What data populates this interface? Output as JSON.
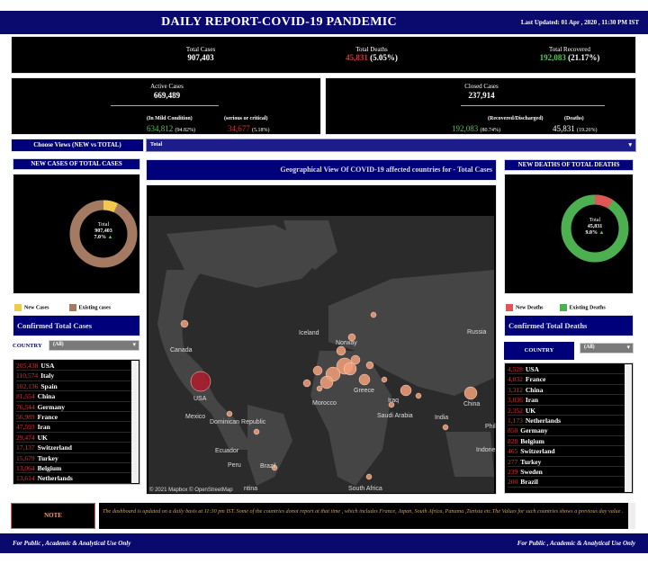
{
  "header": {
    "title": "DAILY REPORT-COVID-19 PANDEMIC",
    "last_updated": "Last Updated: 01 Apr , 2020 , 11:30 PM IST"
  },
  "totals": {
    "total_cases_label": "Total Cases",
    "total_cases": "907,403",
    "total_deaths_label": "Total Deaths",
    "total_deaths": "45,831",
    "total_deaths_pct": "(5.05%)",
    "total_recovered_label": "Total Recovered",
    "total_recovered": "192,083",
    "total_recovered_pct": "(21.17%)"
  },
  "active": {
    "label": "Active Cases",
    "value": "669,489",
    "mild_label": "(In Mild Condition)",
    "mild_value": "634,812",
    "mild_pct": "(94.82%)",
    "serious_label": "(serious or critical)",
    "serious_value": "34,677",
    "serious_pct": "(5.18%)"
  },
  "closed": {
    "label": "Closed Cases",
    "value": "237,914",
    "recovered_label": "(Recovered/Discharged)",
    "recovered_value": "192,083",
    "recovered_pct": "(80.74%)",
    "deaths_label": "(Deaths)",
    "deaths_value": "45,831",
    "deaths_pct": "(19.26%)"
  },
  "views": {
    "label": "Choose Views (NEW vs TOTAL)",
    "selected": "Total"
  },
  "left_panel": {
    "head": "NEW CASES OF TOTAL CASES",
    "donut_total_label": "Total",
    "donut_total_value": "907,403",
    "donut_pct": "7.0%",
    "donut_fraction": 0.07,
    "legend_new": "New Cases",
    "legend_existing": "Existing cases",
    "confirmed_head": "Confirmed Total Cases",
    "country_label": "COUNTRY",
    "country_filter": "(All)",
    "rows": [
      {
        "num": "205,438",
        "name": "USA"
      },
      {
        "num": "110,574",
        "name": "Italy"
      },
      {
        "num": "102,136",
        "name": "Spain"
      },
      {
        "num": "81,554",
        "name": "China"
      },
      {
        "num": "76,544",
        "name": "Germany"
      },
      {
        "num": "56,989",
        "name": "France"
      },
      {
        "num": "47,593",
        "name": "Iran"
      },
      {
        "num": "29,474",
        "name": "UK"
      },
      {
        "num": "17,137",
        "name": "Switzerland"
      },
      {
        "num": "15,679",
        "name": "Turkey"
      },
      {
        "num": "13,064",
        "name": "Belgium"
      },
      {
        "num": "13,614",
        "name": "Netherlands"
      }
    ]
  },
  "right_panel": {
    "head": "NEW DEATHS OF TOTAL DEATHS",
    "donut_total_label": "Total",
    "donut_total_value": "45,831",
    "donut_pct": "9.0%",
    "donut_fraction": 0.09,
    "legend_new": "New Deaths",
    "legend_existing": "Existing Deaths",
    "confirmed_head": "Confirmed Total Deaths",
    "country_label": "COUNTRY",
    "country_filter": "(All)",
    "rows": [
      {
        "num": "4,528",
        "name": "USA"
      },
      {
        "num": "4,032",
        "name": "France"
      },
      {
        "num": "3,312",
        "name": "China"
      },
      {
        "num": "3,036",
        "name": "Iran"
      },
      {
        "num": "2,352",
        "name": "UK"
      },
      {
        "num": "1,173",
        "name": "Netherlands"
      },
      {
        "num": "850",
        "name": "Germany"
      },
      {
        "num": "828",
        "name": "Belgium"
      },
      {
        "num": "465",
        "name": "Switzerland"
      },
      {
        "num": "277",
        "name": "Turkey"
      },
      {
        "num": "239",
        "name": "Sweden"
      },
      {
        "num": "200",
        "name": "Brazil"
      }
    ]
  },
  "map": {
    "title": "Geographical View Of COVID-19 affected countries for - Total Cases",
    "attribution": "© 2021 Mapbox © OpenStreetMap",
    "labels": [
      "Canada",
      "USA",
      "Mexico",
      "Dominican Republic",
      "Ecuador",
      "Peru",
      "Brazil",
      "Iceland",
      "Norway",
      "Greece",
      "Morocco",
      "Iraq",
      "Saudi Arabia",
      "India",
      "China",
      "Russia",
      "Phil",
      "Indone",
      "South Africa",
      "ntina"
    ]
  },
  "note": {
    "label": "NOTE",
    "text": "The dashboard is updated on a daily basis at 11:30 pm IST. Some of the countries donot report at that time , which includes France, Japan, South Africa, Panama ,Tunisia etc.The Values for such countries shows a previous day value ."
  },
  "footer": {
    "left": "For Public , Academic & Analytical Use  Only",
    "right": "For Public , Academic & Analytical Use  Only"
  },
  "colors": {
    "new_cases": "#f2c94c",
    "existing_cases": "#a47a62",
    "new_deaths": "#e05555",
    "existing_deaths": "#4caf50",
    "bubble": "#f2a07a",
    "bubble_usa": "#b01c2e"
  }
}
